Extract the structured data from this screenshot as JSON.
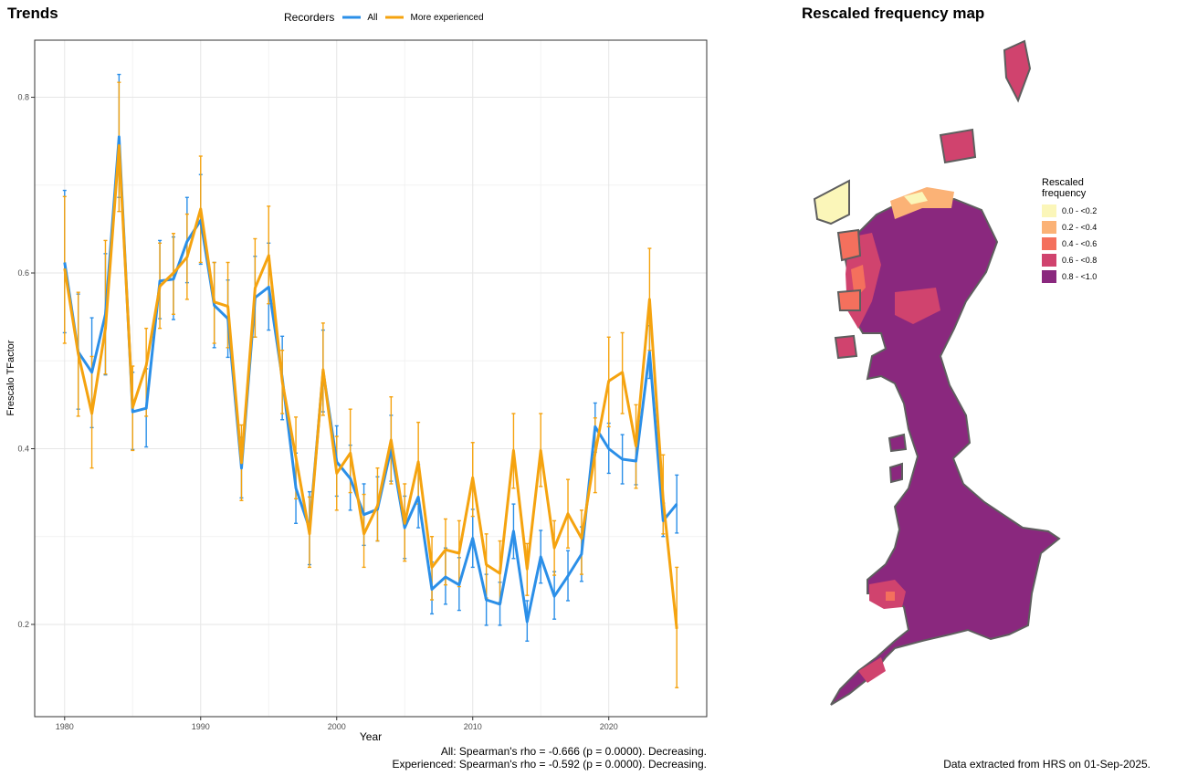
{
  "left_panel": {
    "title": "Trends",
    "legend": {
      "title": "Recorders",
      "entries": [
        {
          "label": "All",
          "color": "#2b8fe8"
        },
        {
          "label": "More experienced",
          "color": "#f5a30f"
        }
      ]
    },
    "footer_lines": [
      "All: Spearman's rho = -0.666 (p = 0.0000). Decreasing.",
      "Experienced: Spearman's rho = -0.592 (p = 0.0000). Decreasing."
    ]
  },
  "chart_data": {
    "type": "line",
    "title": "Trends",
    "xlabel": "Year",
    "ylabel": "Frescalo TFactor",
    "xlim": [
      1977.8,
      2027.2
    ],
    "ylim": [
      0.095,
      0.865
    ],
    "xticks": [
      1980,
      1990,
      2000,
      2010,
      2020
    ],
    "yticks": [
      0.2,
      0.4,
      0.6,
      0.8
    ],
    "ytick_labels": [
      "0.2",
      "0.4",
      "0.6",
      "0.8"
    ],
    "grid": true,
    "legend_position": "top",
    "x": [
      1980,
      1981,
      1982,
      1983,
      1984,
      1985,
      1986,
      1987,
      1988,
      1989,
      1990,
      1991,
      1992,
      1993,
      1994,
      1995,
      1996,
      1997,
      1998,
      1999,
      2000,
      2001,
      2002,
      2003,
      2004,
      2005,
      2006,
      2007,
      2008,
      2009,
      2010,
      2011,
      2012,
      2013,
      2014,
      2015,
      2016,
      2017,
      2018,
      2019,
      2020,
      2021,
      2022,
      2023,
      2024,
      2025
    ],
    "series": [
      {
        "name": "All",
        "color": "#2b8fe8",
        "values": [
          0.612,
          0.51,
          0.487,
          0.553,
          0.755,
          0.442,
          0.446,
          0.591,
          0.593,
          0.636,
          0.66,
          0.563,
          0.548,
          0.378,
          0.572,
          0.584,
          0.48,
          0.355,
          0.309,
          0.488,
          0.385,
          0.366,
          0.325,
          0.331,
          0.4,
          0.31,
          0.345,
          0.24,
          0.254,
          0.245,
          0.298,
          0.228,
          0.223,
          0.306,
          0.203,
          0.277,
          0.232,
          0.255,
          0.28,
          0.425,
          0.4,
          0.388,
          0.386,
          0.51,
          0.318,
          0.337
        ],
        "lower": [
          0.532,
          0.445,
          0.424,
          0.484,
          0.686,
          0.399,
          0.402,
          0.548,
          0.547,
          0.589,
          0.61,
          0.515,
          0.504,
          0.344,
          0.527,
          0.535,
          0.433,
          0.315,
          0.268,
          0.442,
          0.346,
          0.33,
          0.29,
          0.295,
          0.363,
          0.275,
          0.31,
          0.212,
          0.223,
          0.216,
          0.265,
          0.199,
          0.199,
          0.275,
          0.181,
          0.247,
          0.206,
          0.227,
          0.249,
          0.396,
          0.372,
          0.36,
          0.359,
          0.48,
          0.3,
          0.304
        ],
        "upper": [
          0.694,
          0.576,
          0.549,
          0.622,
          0.826,
          0.487,
          0.491,
          0.637,
          0.641,
          0.686,
          0.712,
          0.612,
          0.592,
          0.413,
          0.619,
          0.634,
          0.528,
          0.395,
          0.351,
          0.535,
          0.426,
          0.404,
          0.36,
          0.368,
          0.438,
          0.346,
          0.382,
          0.271,
          0.287,
          0.276,
          0.331,
          0.257,
          0.248,
          0.337,
          0.227,
          0.307,
          0.26,
          0.284,
          0.311,
          0.452,
          0.429,
          0.416,
          0.414,
          0.54,
          0.338,
          0.37
        ]
      },
      {
        "name": "More experienced",
        "color": "#f5a30f",
        "values": [
          0.605,
          0.508,
          0.44,
          0.537,
          0.745,
          0.447,
          0.495,
          0.585,
          0.6,
          0.618,
          0.673,
          0.567,
          0.562,
          0.384,
          0.583,
          0.62,
          0.476,
          0.39,
          0.303,
          0.49,
          0.372,
          0.395,
          0.303,
          0.335,
          0.41,
          0.315,
          0.385,
          0.265,
          0.285,
          0.281,
          0.367,
          0.268,
          0.258,
          0.398,
          0.263,
          0.398,
          0.287,
          0.326,
          0.298,
          0.395,
          0.477,
          0.487,
          0.403,
          0.57,
          0.342,
          0.195
        ],
        "lower": [
          0.52,
          0.437,
          0.378,
          0.485,
          0.67,
          0.398,
          0.437,
          0.537,
          0.553,
          0.57,
          0.612,
          0.52,
          0.515,
          0.341,
          0.527,
          0.565,
          0.44,
          0.343,
          0.265,
          0.438,
          0.33,
          0.35,
          0.265,
          0.295,
          0.36,
          0.272,
          0.337,
          0.228,
          0.245,
          0.243,
          0.323,
          0.23,
          0.225,
          0.355,
          0.233,
          0.357,
          0.256,
          0.287,
          0.257,
          0.35,
          0.425,
          0.44,
          0.355,
          0.512,
          0.303,
          0.128
        ],
        "upper": [
          0.687,
          0.578,
          0.505,
          0.637,
          0.817,
          0.494,
          0.537,
          0.634,
          0.645,
          0.667,
          0.733,
          0.612,
          0.612,
          0.427,
          0.639,
          0.676,
          0.512,
          0.436,
          0.345,
          0.543,
          0.414,
          0.445,
          0.348,
          0.378,
          0.459,
          0.36,
          0.43,
          0.3,
          0.32,
          0.318,
          0.407,
          0.303,
          0.295,
          0.44,
          0.292,
          0.44,
          0.318,
          0.365,
          0.33,
          0.435,
          0.527,
          0.532,
          0.45,
          0.628,
          0.393,
          0.265
        ]
      }
    ]
  },
  "right_panel": {
    "title": "Rescaled frequency map",
    "legend": {
      "title_lines": [
        "Rescaled",
        "frequency"
      ],
      "entries": [
        {
          "label": "0.0 - <0.2",
          "color": "#fbf6b9"
        },
        {
          "label": "0.2 - <0.4",
          "color": "#fbb276"
        },
        {
          "label": "0.4 - <0.6",
          "color": "#f4705d"
        },
        {
          "label": "0.6 - <0.8",
          "color": "#d0436e"
        },
        {
          "label": "0.8 - <1.0",
          "color": "#8a287e"
        }
      ]
    },
    "footer": "Data extracted from HRS on 01-Sep-2025."
  }
}
